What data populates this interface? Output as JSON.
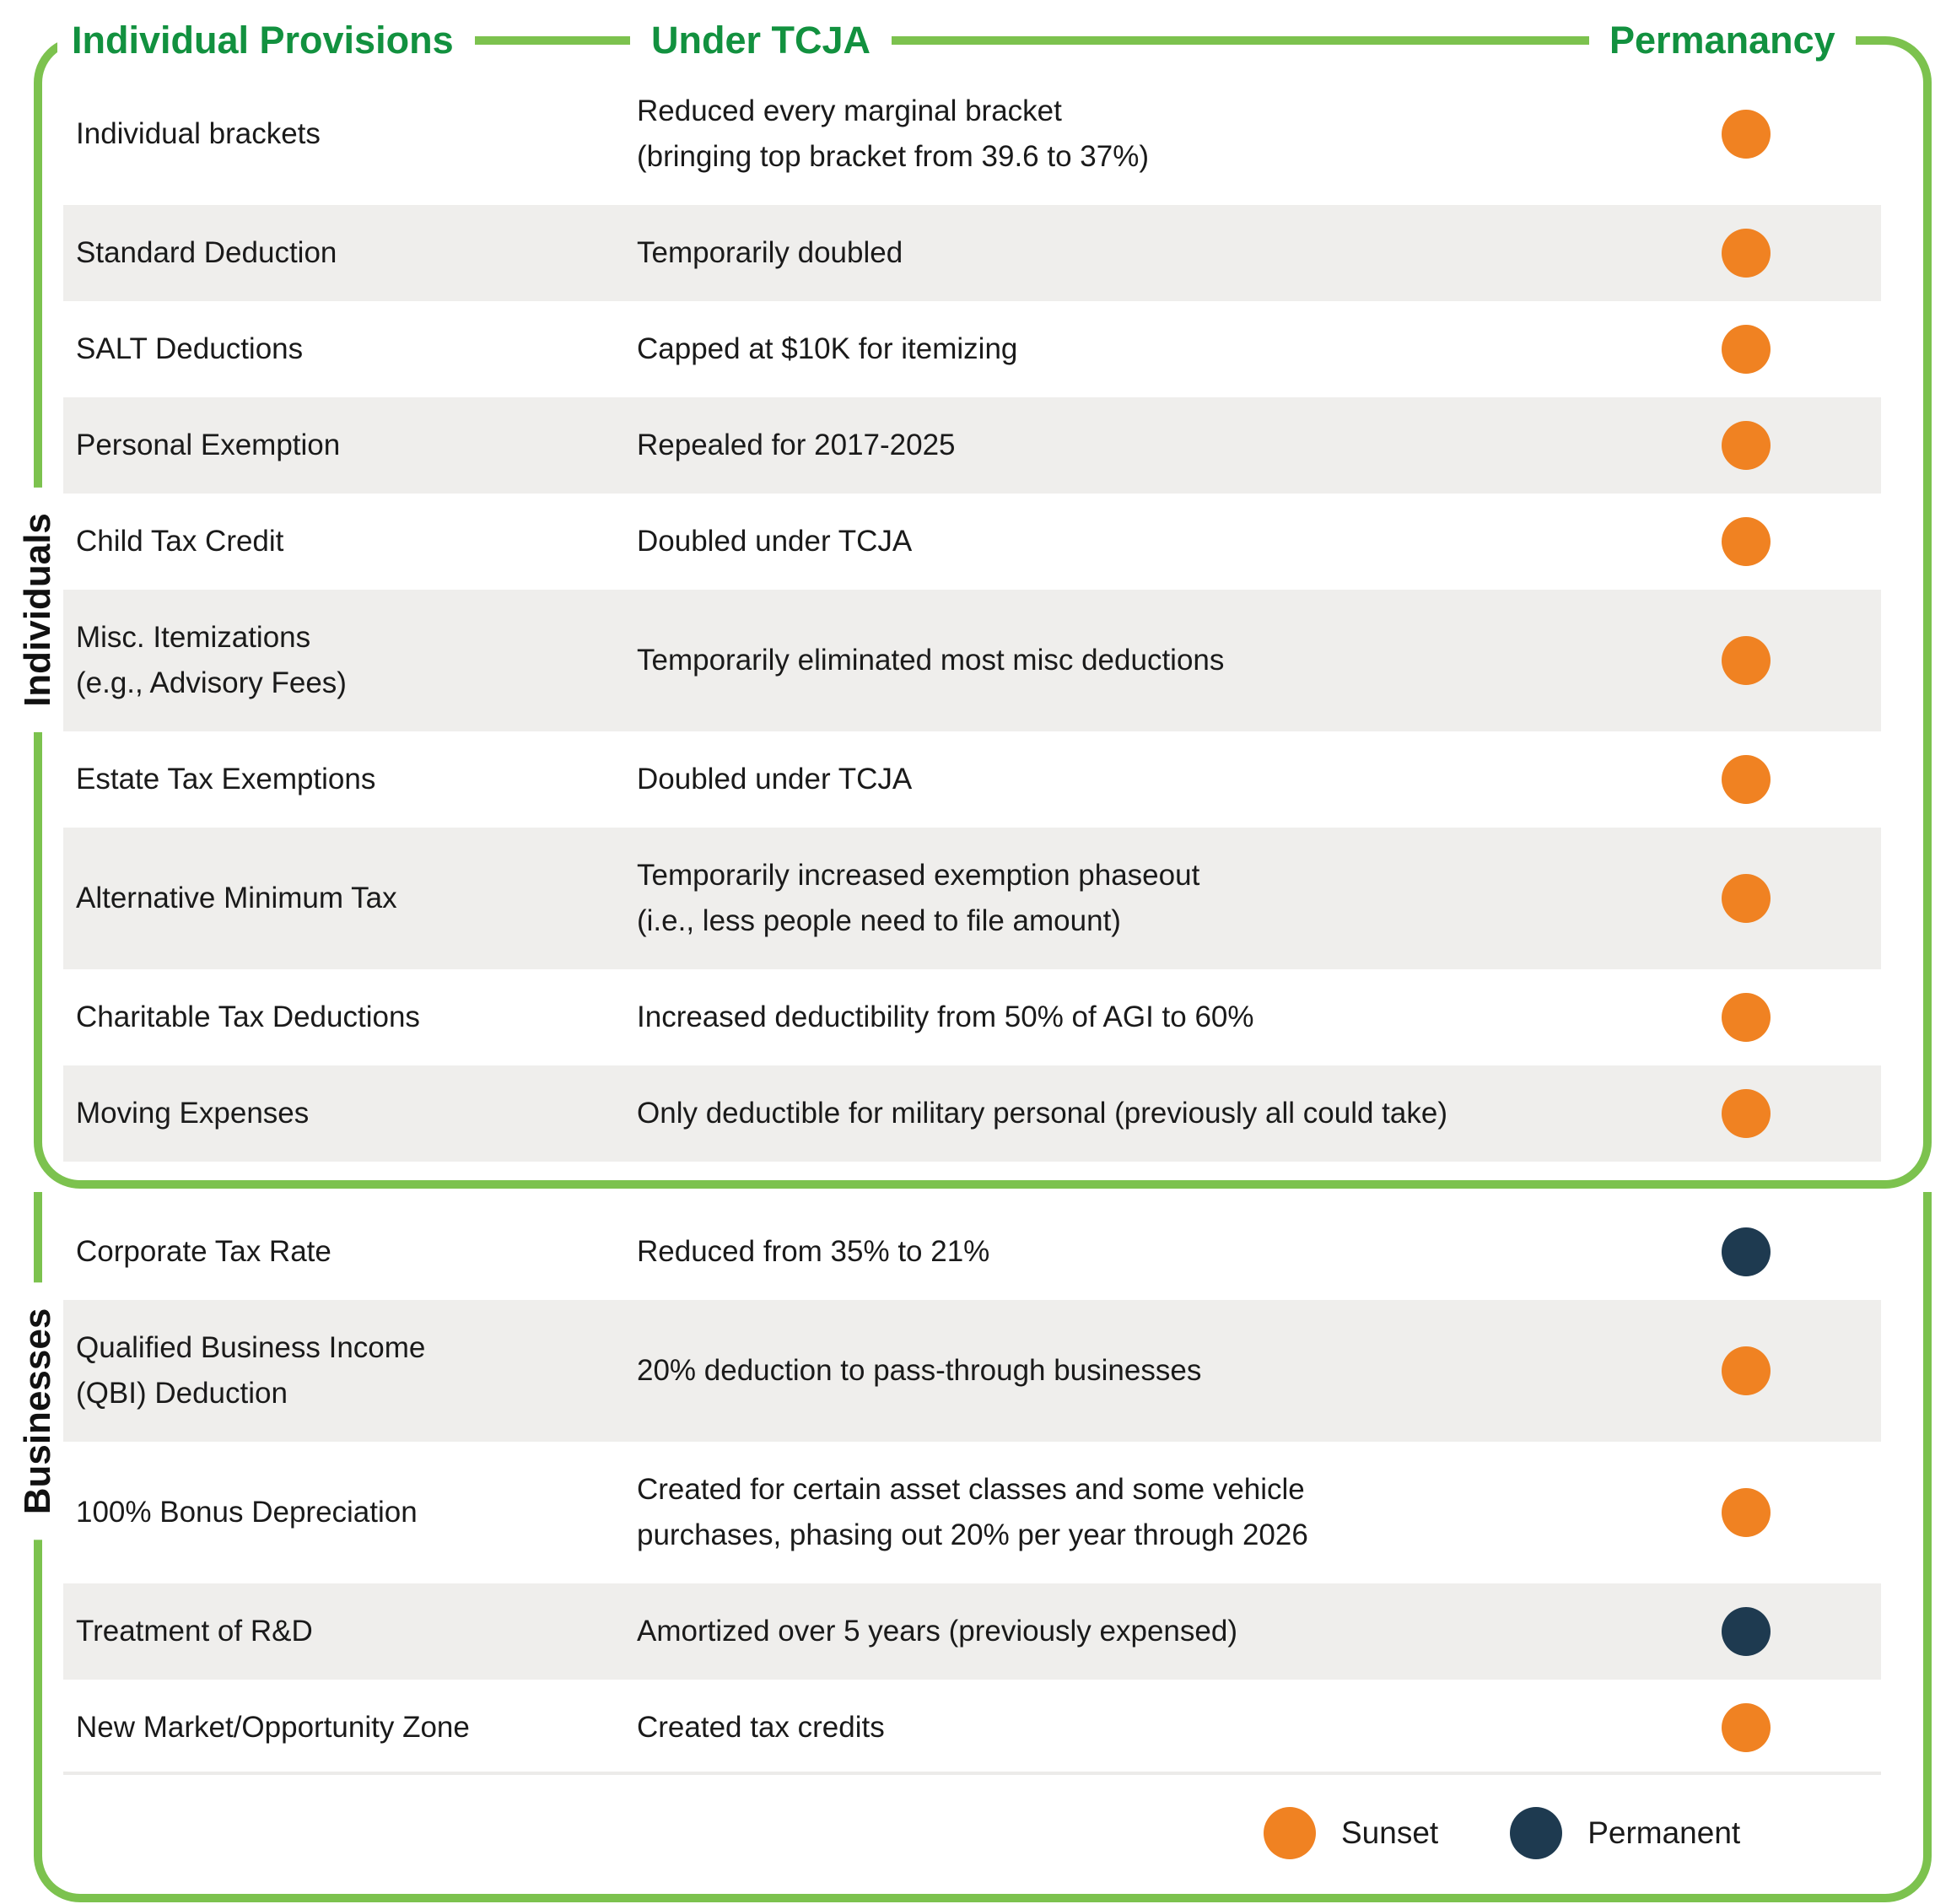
{
  "chart_data": {
    "type": "table",
    "columns": [
      "Individual Provisions",
      "Under TCJA",
      "Permanancy"
    ],
    "sections": [
      {
        "name": "Individuals",
        "rows": [
          {
            "provision": "Individual brackets",
            "description": "Reduced every marginal bracket\n(bringing top bracket from 39.6 to 37%)",
            "status": "sunset"
          },
          {
            "provision": "Standard Deduction",
            "description": "Temporarily doubled",
            "status": "sunset"
          },
          {
            "provision": "SALT Deductions",
            "description": "Capped at $10K for itemizing",
            "status": "sunset"
          },
          {
            "provision": "Personal Exemption",
            "description": "Repealed for 2017-2025",
            "status": "sunset"
          },
          {
            "provision": "Child Tax Credit",
            "description": "Doubled under TCJA",
            "status": "sunset"
          },
          {
            "provision": "Misc. Itemizations\n(e.g., Advisory Fees)",
            "description": "Temporarily eliminated most misc deductions",
            "status": "sunset"
          },
          {
            "provision": "Estate Tax Exemptions",
            "description": "Doubled under TCJA",
            "status": "sunset"
          },
          {
            "provision": "Alternative Minimum Tax",
            "description": "Temporarily increased exemption phaseout\n(i.e., less people need to file amount)",
            "status": "sunset"
          },
          {
            "provision": "Charitable Tax Deductions",
            "description": "Increased deductibility from 50% of AGI to 60%",
            "status": "sunset"
          },
          {
            "provision": "Moving Expenses",
            "description": "Only deductible for military personal (previously all could take)",
            "status": "sunset"
          }
        ]
      },
      {
        "name": "Businesses",
        "rows": [
          {
            "provision": "Corporate Tax Rate",
            "description": "Reduced from 35% to 21%",
            "status": "permanent"
          },
          {
            "provision": "Qualified Business Income\n(QBI) Deduction",
            "description": "20% deduction to pass-through businesses",
            "status": "sunset"
          },
          {
            "provision": "100% Bonus Depreciation",
            "description": "Created for certain asset classes and some vehicle\npurchases, phasing out 20% per year through 2026",
            "status": "sunset"
          },
          {
            "provision": "Treatment of R&D",
            "description": "Amortized over 5 years (previously expensed)",
            "status": "permanent"
          },
          {
            "provision": "New Market/Opportunity Zone",
            "description": "Created tax credits",
            "status": "sunset"
          }
        ]
      }
    ],
    "legend": [
      {
        "label": "Sunset",
        "status": "sunset"
      },
      {
        "label": "Permanent",
        "status": "permanent"
      }
    ]
  },
  "colors": {
    "sunset": "#F08222",
    "permanent": "#1E3A50",
    "line_green": "#7CC24E",
    "header_green": "#12913F",
    "row_alt": "#EFEEEC"
  }
}
